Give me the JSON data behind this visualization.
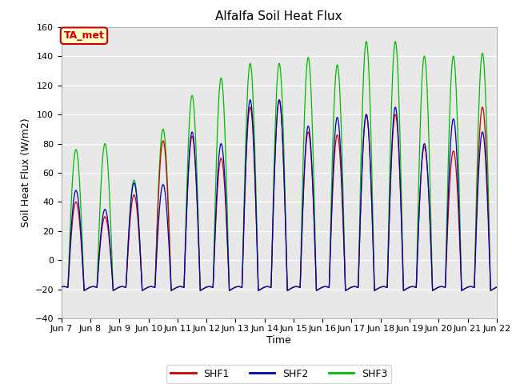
{
  "title": "Alfalfa Soil Heat Flux",
  "ylabel": "Soil Heat Flux (W/m2)",
  "xlabel": "Time",
  "ylim": [
    -40,
    160
  ],
  "yticks": [
    -40,
    -20,
    0,
    20,
    40,
    60,
    80,
    100,
    120,
    140,
    160
  ],
  "xtick_labels": [
    "Jun 7",
    "Jun 8",
    "Jun 9",
    "Jun 10",
    "Jun 11",
    "Jun 12",
    "Jun 13",
    "Jun 14",
    "Jun 15",
    "Jun 16",
    "Jun 17",
    "Jun 18",
    "Jun 19",
    "Jun 20",
    "Jun 21",
    "Jun 22"
  ],
  "fig_bg_color": "#ffffff",
  "plot_bg_color": "#e8e8e8",
  "grid_color": "#ffffff",
  "shf1_color": "#cc0000",
  "shf2_color": "#0000bb",
  "shf3_color": "#00bb00",
  "annotation_text": "TA_met",
  "annotation_bg": "#ffffcc",
  "annotation_border": "#cc0000",
  "legend_labels": [
    "SHF1",
    "SHF2",
    "SHF3"
  ],
  "daily_peaks_shf1": [
    40,
    30,
    45,
    82,
    85,
    70,
    105,
    110,
    88,
    86,
    100,
    100,
    78,
    75,
    105
  ],
  "daily_peaks_shf2": [
    48,
    35,
    53,
    52,
    88,
    80,
    110,
    110,
    92,
    98,
    100,
    105,
    80,
    97,
    88
  ],
  "daily_peaks_shf3": [
    76,
    80,
    55,
    90,
    113,
    125,
    135,
    135,
    139,
    134,
    150,
    150,
    140,
    140,
    142
  ],
  "night_min": -20,
  "points_per_day": 96
}
